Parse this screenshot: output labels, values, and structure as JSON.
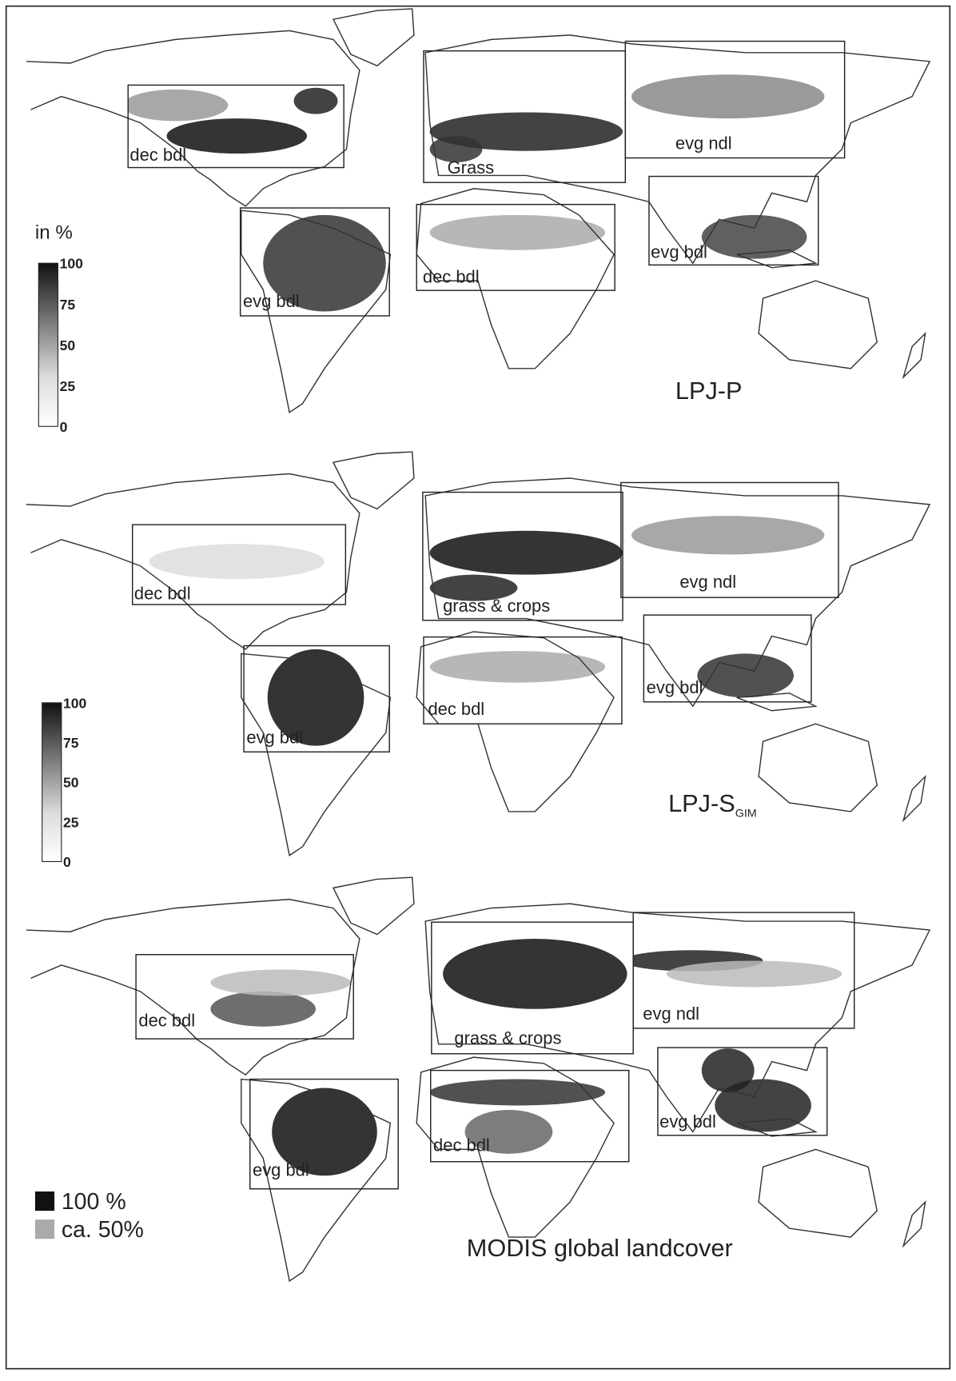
{
  "panels": [
    {
      "title": "LPJ-P",
      "colorbar": {
        "label": "in %",
        "ticks": [
          100,
          75,
          50,
          25,
          0
        ]
      },
      "regions": [
        "dec bdl",
        "Grass",
        "evg ndl",
        "evg bdl",
        "dec bdl",
        "evg bdl"
      ]
    },
    {
      "title": "LPJ-S",
      "title_subscript": "GIM",
      "colorbar": {
        "ticks": [
          100,
          75,
          50,
          25,
          0
        ]
      },
      "regions": [
        "dec bdl",
        "grass & crops",
        "evg ndl",
        "evg bdl",
        "dec bdl",
        "evg bdl"
      ]
    },
    {
      "title": "MODIS global landcover",
      "legend": [
        {
          "label": "100 %",
          "color": "#111111"
        },
        {
          "label": "ca. 50%",
          "color": "#aaaaaa"
        }
      ],
      "regions": [
        "dec bdl",
        "grass & crops",
        "evg ndl",
        "evg bdl",
        "dec bdl",
        "evg bdl"
      ]
    }
  ]
}
